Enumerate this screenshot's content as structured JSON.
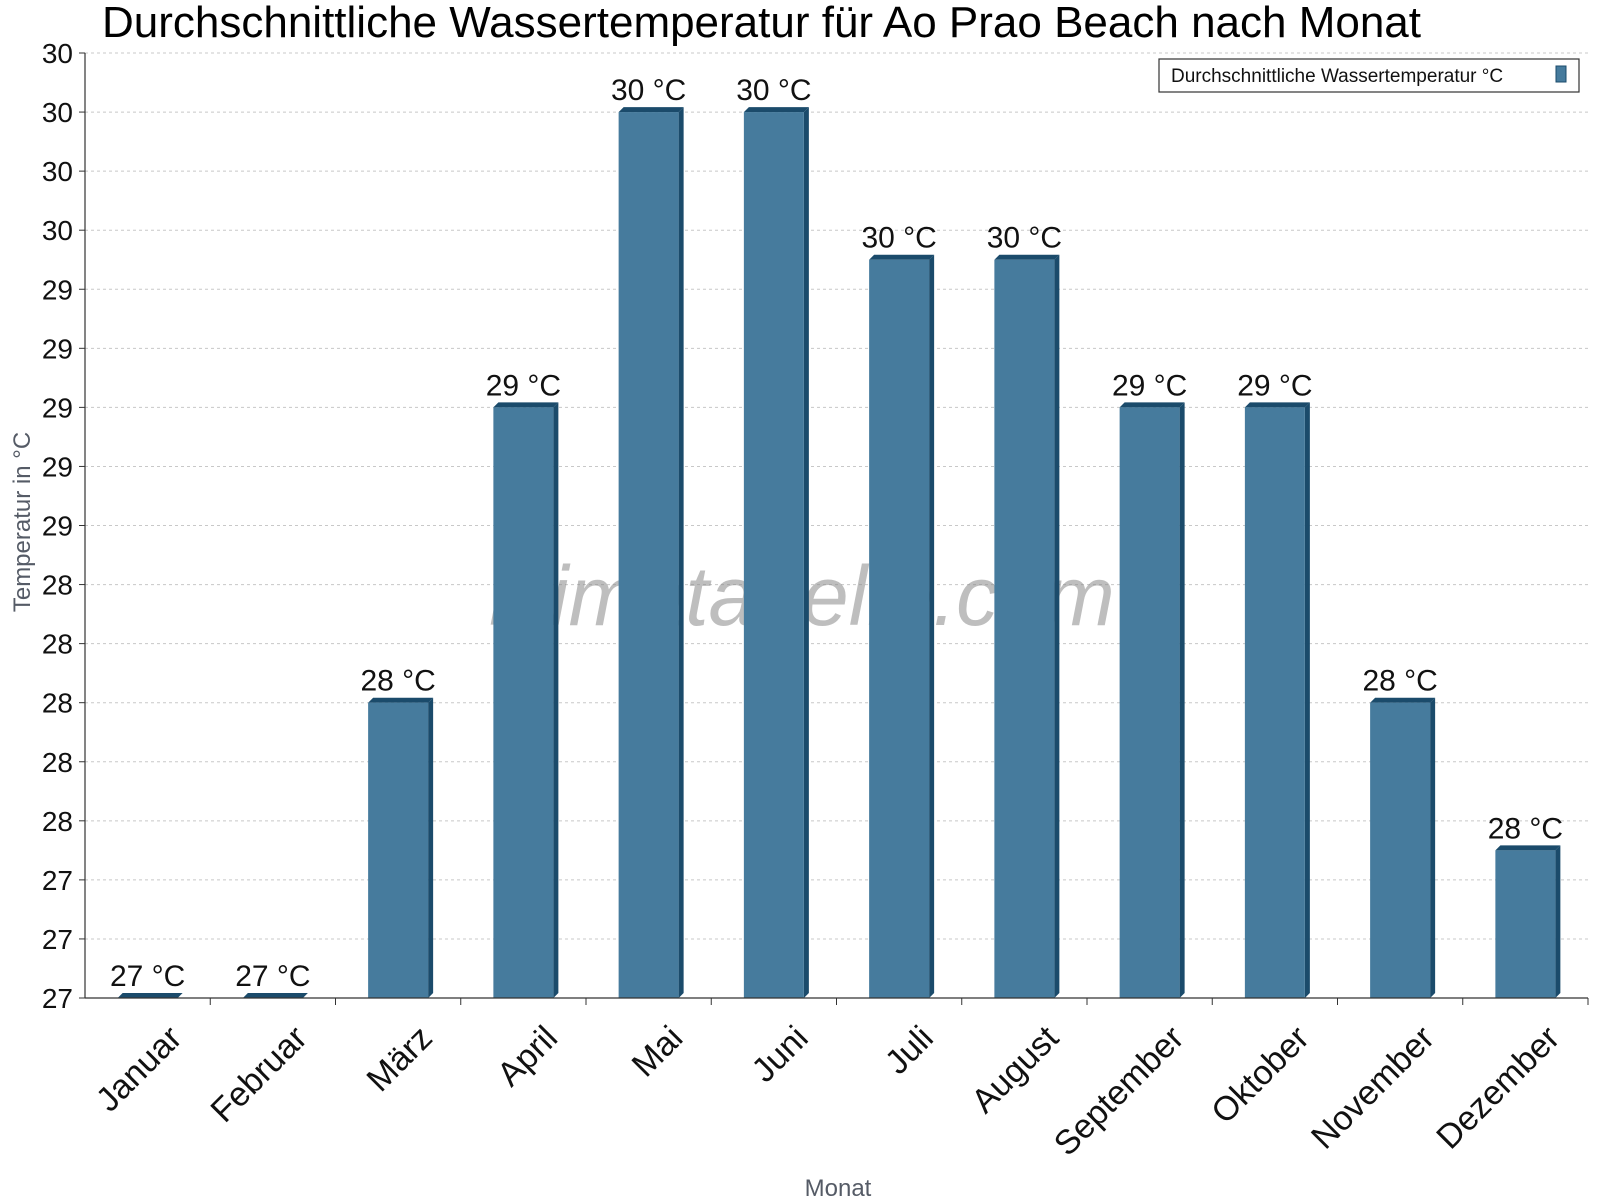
{
  "chart_data": {
    "type": "bar",
    "title": "Durchschnittliche Wassertemperatur für Ao Prao Beach nach Monat",
    "xlabel": "Monat",
    "ylabel": "Temperatur in °C",
    "categories": [
      "Januar",
      "Februar",
      "März",
      "April",
      "Mai",
      "Juni",
      "Juli",
      "August",
      "September",
      "Oktober",
      "November",
      "Dezember"
    ],
    "series": [
      {
        "name": "Durchschnittliche Wassertemperatur °C",
        "values": [
          27.0,
          27.0,
          28.0,
          29.0,
          30.0,
          30.0,
          29.5,
          29.5,
          29.0,
          29.0,
          28.0,
          27.5
        ],
        "labels": [
          "27 °C",
          "27 °C",
          "28 °C",
          "29 °C",
          "30 °C",
          "30 °C",
          "30 °C",
          "30 °C",
          "29 °C",
          "29 °C",
          "28 °C",
          "28 °C"
        ]
      }
    ],
    "ylim": [
      27.0,
      30.2
    ],
    "yticks": [
      {
        "value": 27.0,
        "label": "27"
      },
      {
        "value": 27.2,
        "label": "27"
      },
      {
        "value": 27.4,
        "label": "27"
      },
      {
        "value": 27.6,
        "label": "28"
      },
      {
        "value": 27.8,
        "label": "28"
      },
      {
        "value": 28.0,
        "label": "28"
      },
      {
        "value": 28.2,
        "label": "28"
      },
      {
        "value": 28.4,
        "label": "28"
      },
      {
        "value": 28.6,
        "label": "29"
      },
      {
        "value": 28.8,
        "label": "29"
      },
      {
        "value": 29.0,
        "label": "29"
      },
      {
        "value": 29.2,
        "label": "29"
      },
      {
        "value": 29.4,
        "label": "29"
      },
      {
        "value": 29.6,
        "label": "30"
      },
      {
        "value": 29.8,
        "label": "30"
      },
      {
        "value": 30.0,
        "label": "30"
      },
      {
        "value": 30.2,
        "label": "30"
      }
    ],
    "grid": true,
    "legend_position": "top-right",
    "colors": {
      "bar": "#467b9d",
      "bar_edge": "#1b4b6b",
      "grid": "#c8c8c8",
      "axis": "#333333"
    },
    "watermark": "klimatabelle.com"
  }
}
